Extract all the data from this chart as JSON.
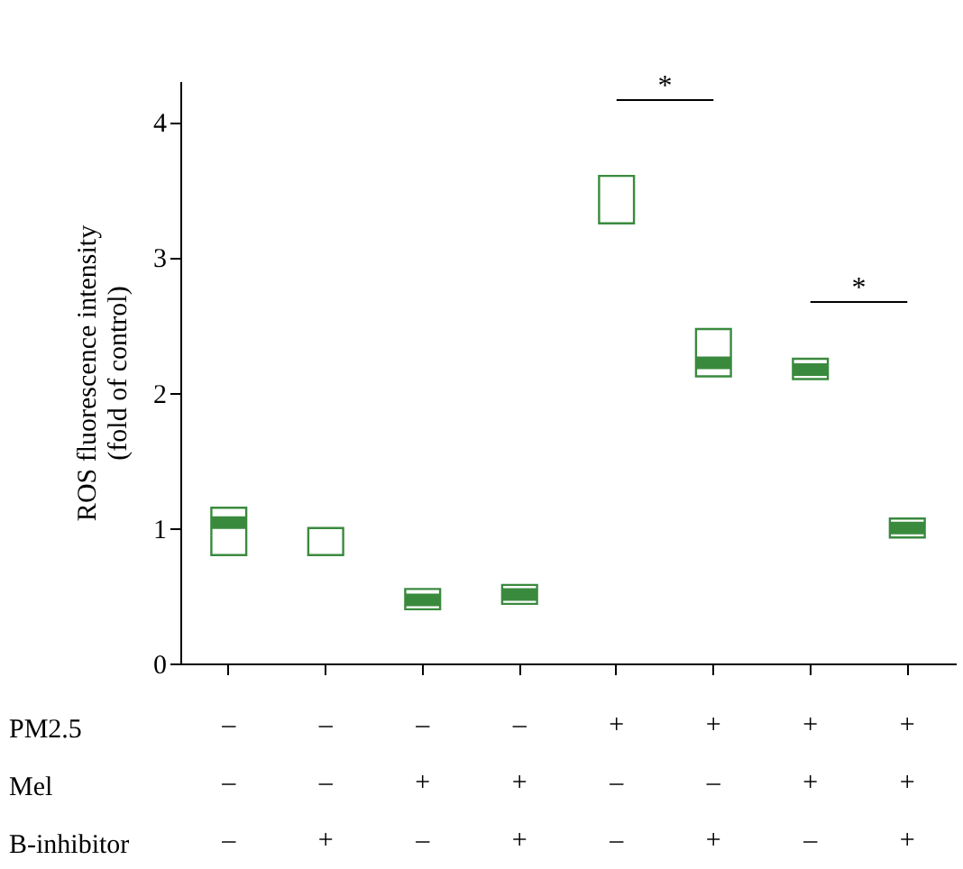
{
  "chart_data": {
    "type": "box",
    "ylabel": "ROS fluorescence intensity\n(fold of control)",
    "categories": [
      "–\n–\n–",
      "–\n–\n+",
      "–\n+\n–",
      "–\n+\n+",
      "+\n–\n–",
      "+\n–\n+",
      "+\n+\n–",
      "+\n+\n+"
    ],
    "color": "#3a8a3e",
    "boxes": [
      {
        "low": 0.8,
        "q1": 0.8,
        "median": 1.04,
        "q3": 1.15,
        "high": 1.15
      },
      {
        "low": 0.8,
        "q1": 0.8,
        "q3": 1.0,
        "high": 1.0
      },
      {
        "low": 0.4,
        "q1": 0.4,
        "median": 0.47,
        "q3": 0.55,
        "high": 0.55
      },
      {
        "low": 0.44,
        "q1": 0.44,
        "median": 0.51,
        "q3": 0.58,
        "high": 0.58
      },
      {
        "low": 3.25,
        "q1": 3.25,
        "q3": 3.6,
        "high": 3.6
      },
      {
        "low": 2.12,
        "q1": 2.12,
        "median": 2.22,
        "q3": 2.47,
        "high": 2.47
      },
      {
        "low": 2.1,
        "q1": 2.1,
        "median": 2.17,
        "q3": 2.25,
        "high": 2.25
      },
      {
        "low": 0.93,
        "q1": 0.93,
        "median": 1.0,
        "q3": 1.07,
        "high": 1.07
      }
    ],
    "ylim": [
      0,
      4.3
    ],
    "yticks": [
      0,
      1,
      2,
      3,
      4
    ],
    "grid": false,
    "annotations": [
      "*",
      "*",
      "PM2.5",
      "Mel",
      "B-inhibitor"
    ]
  }
}
